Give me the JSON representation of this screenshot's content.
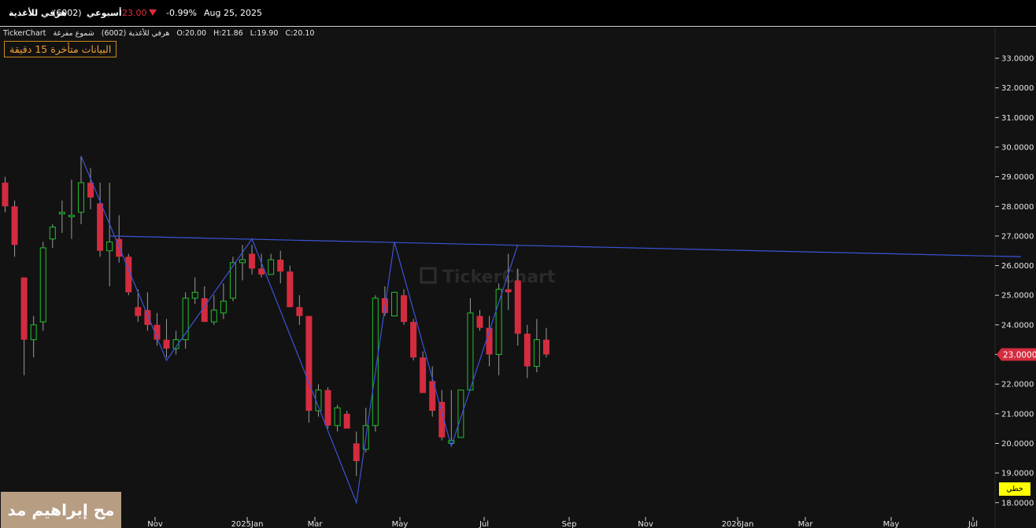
{
  "header": {
    "symbol_name": "هرفي للأغذية",
    "symbol_code": "(6002)",
    "period": "أسبوعي",
    "price": "23.00",
    "change_pct": "-0.99%",
    "date": "Aug 25, 2025",
    "down_color": "#e02a3c"
  },
  "legend": {
    "source": "TickerChart",
    "symbol": "هرفي للأغذية (6002)",
    "chart_kind": "شموع مفرغة",
    "open": "O:20.00",
    "high": "H:21.86",
    "low": "L:19.90",
    "close": "C:20.10"
  },
  "delay_notice": "البيانات متأخرة 15 دقيقة",
  "watermark_text": "TickerChart",
  "overlay_caption": "مح إبراهيم مد",
  "linear_button": "خطي",
  "chart_data": {
    "type": "candlestick",
    "ylim": [
      17.5,
      33.5
    ],
    "y_ticks": [
      "33.0000",
      "32.0000",
      "31.0000",
      "30.0000",
      "29.0000",
      "28.0000",
      "27.0000",
      "26.0000",
      "25.0000",
      "24.0000",
      "23.0000",
      "22.0000",
      "21.0000",
      "20.0000",
      "19.0000",
      "18.0000"
    ],
    "last_price_label": "23.0000",
    "x_labels": [
      "Nov",
      "2025Jan",
      "Mar",
      "May",
      "Jul",
      "Sep",
      "Nov",
      "2026Jan",
      "Mar",
      "May",
      "Jul"
    ],
    "up_color": "#22c02e",
    "down_color": "#d42c3f",
    "line_color": "#3b55d6",
    "candles": [
      {
        "o": 28.8,
        "h": 29.0,
        "l": 27.8,
        "c": 28.0
      },
      {
        "o": 28.0,
        "h": 28.2,
        "l": 26.3,
        "c": 26.7
      },
      {
        "o": 25.6,
        "h": 25.6,
        "l": 22.3,
        "c": 23.5
      },
      {
        "o": 23.5,
        "h": 24.3,
        "l": 22.9,
        "c": 24.0
      },
      {
        "o": 24.1,
        "h": 26.8,
        "l": 23.8,
        "c": 26.6
      },
      {
        "o": 26.9,
        "h": 27.4,
        "l": 26.6,
        "c": 27.3
      },
      {
        "o": 27.8,
        "h": 28.2,
        "l": 27.1,
        "c": 27.8
      },
      {
        "o": 27.7,
        "h": 28.9,
        "l": 26.9,
        "c": 27.7
      },
      {
        "o": 27.8,
        "h": 29.7,
        "l": 27.4,
        "c": 28.8
      },
      {
        "o": 28.8,
        "h": 29.3,
        "l": 27.9,
        "c": 28.3
      },
      {
        "o": 28.1,
        "h": 28.8,
        "l": 26.3,
        "c": 26.5
      },
      {
        "o": 26.5,
        "h": 28.8,
        "l": 25.3,
        "c": 26.8
      },
      {
        "o": 26.9,
        "h": 27.7,
        "l": 26.1,
        "c": 26.3
      },
      {
        "o": 26.3,
        "h": 26.4,
        "l": 25.0,
        "c": 25.1
      },
      {
        "o": 24.6,
        "h": 25.2,
        "l": 24.1,
        "c": 24.3
      },
      {
        "o": 24.5,
        "h": 25.1,
        "l": 23.8,
        "c": 24.0
      },
      {
        "o": 24.0,
        "h": 24.4,
        "l": 23.3,
        "c": 23.5
      },
      {
        "o": 23.5,
        "h": 24.2,
        "l": 22.9,
        "c": 23.2
      },
      {
        "o": 23.2,
        "h": 23.8,
        "l": 23.0,
        "c": 23.5
      },
      {
        "o": 23.5,
        "h": 25.1,
        "l": 23.2,
        "c": 24.9
      },
      {
        "o": 24.9,
        "h": 25.6,
        "l": 24.7,
        "c": 25.1
      },
      {
        "o": 24.9,
        "h": 25.3,
        "l": 24.1,
        "c": 24.1
      },
      {
        "o": 24.1,
        "h": 25.0,
        "l": 24.0,
        "c": 24.5
      },
      {
        "o": 24.4,
        "h": 25.4,
        "l": 24.2,
        "c": 24.8
      },
      {
        "o": 24.9,
        "h": 26.3,
        "l": 24.8,
        "c": 26.1
      },
      {
        "o": 26.1,
        "h": 26.7,
        "l": 25.5,
        "c": 26.2
      },
      {
        "o": 26.4,
        "h": 26.7,
        "l": 25.7,
        "c": 25.9
      },
      {
        "o": 25.9,
        "h": 26.4,
        "l": 25.6,
        "c": 25.7
      },
      {
        "o": 25.7,
        "h": 26.4,
        "l": 25.7,
        "c": 26.2
      },
      {
        "o": 26.2,
        "h": 26.5,
        "l": 25.4,
        "c": 25.8
      },
      {
        "o": 25.8,
        "h": 26.0,
        "l": 24.6,
        "c": 24.6
      },
      {
        "o": 24.6,
        "h": 25.0,
        "l": 24.0,
        "c": 24.3
      },
      {
        "o": 24.3,
        "h": 24.3,
        "l": 20.7,
        "c": 21.1
      },
      {
        "o": 21.1,
        "h": 22.0,
        "l": 20.9,
        "c": 21.8
      },
      {
        "o": 21.8,
        "h": 21.9,
        "l": 20.5,
        "c": 20.6
      },
      {
        "o": 20.6,
        "h": 21.3,
        "l": 20.4,
        "c": 21.2
      },
      {
        "o": 21.0,
        "h": 21.1,
        "l": 20.5,
        "c": 20.5
      },
      {
        "o": 20.0,
        "h": 20.4,
        "l": 18.9,
        "c": 19.4
      },
      {
        "o": 19.8,
        "h": 21.2,
        "l": 19.7,
        "c": 20.6
      },
      {
        "o": 20.6,
        "h": 25.0,
        "l": 20.4,
        "c": 24.9
      },
      {
        "o": 24.9,
        "h": 25.3,
        "l": 24.3,
        "c": 24.4
      },
      {
        "o": 24.3,
        "h": 25.1,
        "l": 24.3,
        "c": 25.1
      },
      {
        "o": 25.0,
        "h": 25.2,
        "l": 24.0,
        "c": 24.1
      },
      {
        "o": 24.1,
        "h": 24.2,
        "l": 22.8,
        "c": 22.9
      },
      {
        "o": 22.9,
        "h": 23.1,
        "l": 21.7,
        "c": 21.7
      },
      {
        "o": 22.1,
        "h": 22.6,
        "l": 20.9,
        "c": 21.1
      },
      {
        "o": 21.4,
        "h": 21.8,
        "l": 20.1,
        "c": 20.2
      },
      {
        "o": 20.0,
        "h": 21.8,
        "l": 19.9,
        "c": 20.1
      },
      {
        "o": 20.2,
        "h": 21.8,
        "l": 20.2,
        "c": 21.8
      },
      {
        "o": 21.8,
        "h": 24.9,
        "l": 21.8,
        "c": 24.4
      },
      {
        "o": 24.3,
        "h": 24.5,
        "l": 23.8,
        "c": 23.9
      },
      {
        "o": 23.9,
        "h": 24.3,
        "l": 22.6,
        "c": 23.0
      },
      {
        "o": 23.0,
        "h": 25.4,
        "l": 22.3,
        "c": 25.2
      },
      {
        "o": 25.2,
        "h": 26.4,
        "l": 24.5,
        "c": 25.1
      },
      {
        "o": 25.5,
        "h": 25.9,
        "l": 23.3,
        "c": 23.7
      },
      {
        "o": 23.7,
        "h": 24.0,
        "l": 22.2,
        "c": 22.6
      },
      {
        "o": 22.6,
        "h": 24.2,
        "l": 22.4,
        "c": 23.5
      },
      {
        "o": 23.5,
        "h": 23.9,
        "l": 22.9,
        "c": 23.0
      }
    ],
    "zigzag": [
      [
        8,
        29.7
      ],
      [
        17,
        22.8
      ],
      [
        26,
        26.9
      ],
      [
        37,
        18.0
      ],
      [
        41,
        26.8
      ],
      [
        47,
        19.9
      ],
      [
        54,
        26.7
      ]
    ],
    "trendline": [
      [
        11,
        27.0
      ],
      [
        107,
        26.3
      ]
    ]
  }
}
